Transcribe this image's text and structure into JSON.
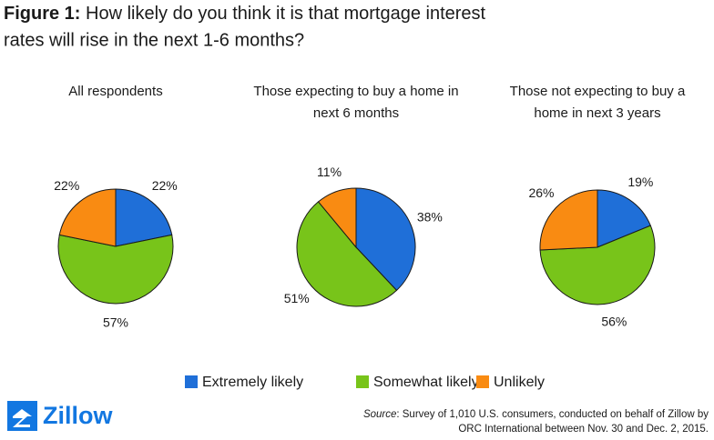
{
  "title_label": "Figure 1:",
  "title": [
    "How likely do you think it is that mortgage interest",
    "rates will rise in the next 1-6 months?"
  ],
  "chart_data": [
    {
      "type": "pie",
      "title": [
        "All respondents"
      ],
      "categories": [
        "Extremely likely",
        "Somewhat likely",
        "Unlikely"
      ],
      "values": [
        22,
        57,
        22
      ],
      "value_labels": [
        "22%",
        "57%",
        "22%"
      ],
      "colors": [
        "#1f6fd8",
        "#78c41a",
        "#f98b12"
      ]
    },
    {
      "type": "pie",
      "title": [
        "Those expecting to buy a home in",
        "next 6 months"
      ],
      "categories": [
        "Extremely likely",
        "Somewhat likely",
        "Unlikely"
      ],
      "values": [
        38,
        51,
        11
      ],
      "value_labels": [
        "38%",
        "51%",
        "11%"
      ],
      "colors": [
        "#1f6fd8",
        "#78c41a",
        "#f98b12"
      ]
    },
    {
      "type": "pie",
      "title": [
        "Those not expecting to buy a",
        "home in next 3 years"
      ],
      "categories": [
        "Extremely likely",
        "Somewhat likely",
        "Unlikely"
      ],
      "values": [
        19,
        56,
        26
      ],
      "value_labels": [
        "19%",
        "56%",
        "26%"
      ],
      "colors": [
        "#1f6fd8",
        "#78c41a",
        "#f98b12"
      ]
    }
  ],
  "brand": "Zillow",
  "source_label": "Source",
  "source": [
    ": Survey of 1,010 U.S. consumers, conducted on behalf of Zillow by",
    "ORC International between Nov. 30 and Dec. 2, 2015."
  ]
}
